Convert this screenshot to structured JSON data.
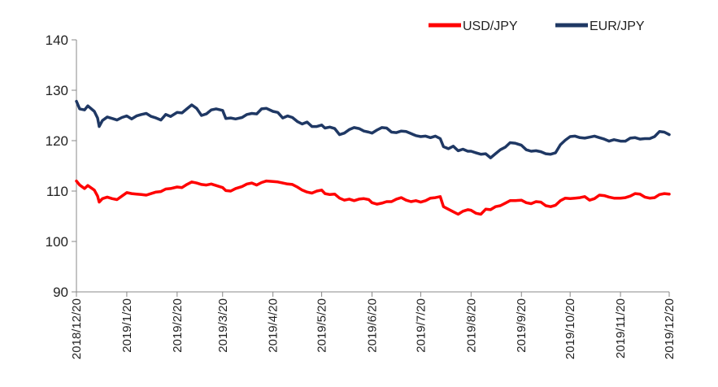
{
  "chart_data": {
    "type": "line",
    "title": "",
    "xlabel": "",
    "ylabel": "",
    "ylim": [
      90,
      140
    ],
    "yticks": [
      "140",
      "130",
      "120",
      "110",
      "100",
      "90"
    ],
    "xlim": [
      "2018/12/20",
      "2019/12/20"
    ],
    "xticks": [
      "2018/12/20",
      "2019/1/20",
      "2019/2/20",
      "2019/3/20",
      "2019/4/20",
      "2019/5/20",
      "2019/6/20",
      "2019/7/20",
      "2019/8/20",
      "2019/9/20",
      "2019/10/20",
      "2019/11/20",
      "2019/12/20"
    ],
    "grid": false,
    "legend_position": "top-right",
    "series": [
      {
        "name": "USD/JPY",
        "color": "#ff0000",
        "points": [
          [
            "2018/12/20",
            112.0
          ],
          [
            "2018/12/22",
            111.2
          ],
          [
            "2018/12/25",
            110.5
          ],
          [
            "2018/12/27",
            111.1
          ],
          [
            "2018/12/31",
            110.2
          ],
          [
            "2019/1/2",
            109.0
          ],
          [
            "2019/1/3",
            107.8
          ],
          [
            "2019/1/5",
            108.5
          ],
          [
            "2019/1/8",
            108.8
          ],
          [
            "2019/1/11",
            108.5
          ],
          [
            "2019/1/14",
            108.3
          ],
          [
            "2019/1/17",
            109.0
          ],
          [
            "2019/1/20",
            109.7
          ],
          [
            "2019/1/23",
            109.5
          ],
          [
            "2019/1/26",
            109.4
          ],
          [
            "2019/1/29",
            109.3
          ],
          [
            "2019/2/1",
            109.2
          ],
          [
            "2019/2/4",
            109.5
          ],
          [
            "2019/2/7",
            109.8
          ],
          [
            "2019/2/10",
            109.9
          ],
          [
            "2019/2/13",
            110.4
          ],
          [
            "2019/2/16",
            110.5
          ],
          [
            "2019/2/20",
            110.8
          ],
          [
            "2019/2/23",
            110.7
          ],
          [
            "2019/2/26",
            111.3
          ],
          [
            "2019/3/1",
            111.8
          ],
          [
            "2019/3/4",
            111.6
          ],
          [
            "2019/3/7",
            111.3
          ],
          [
            "2019/3/10",
            111.2
          ],
          [
            "2019/3/13",
            111.4
          ],
          [
            "2019/3/16",
            111.1
          ],
          [
            "2019/3/20",
            110.7
          ],
          [
            "2019/3/22",
            110.1
          ],
          [
            "2019/3/25",
            110.0
          ],
          [
            "2019/3/28",
            110.5
          ],
          [
            "2019/4/1",
            110.9
          ],
          [
            "2019/4/4",
            111.4
          ],
          [
            "2019/4/7",
            111.6
          ],
          [
            "2019/4/10",
            111.2
          ],
          [
            "2019/4/13",
            111.7
          ],
          [
            "2019/4/16",
            112.0
          ],
          [
            "2019/4/20",
            111.9
          ],
          [
            "2019/4/23",
            111.8
          ],
          [
            "2019/4/26",
            111.6
          ],
          [
            "2019/4/29",
            111.4
          ],
          [
            "2019/5/2",
            111.3
          ],
          [
            "2019/5/5",
            110.8
          ],
          [
            "2019/5/8",
            110.2
          ],
          [
            "2019/5/11",
            109.8
          ],
          [
            "2019/5/14",
            109.6
          ],
          [
            "2019/5/17",
            110.0
          ],
          [
            "2019/5/20",
            110.2
          ],
          [
            "2019/5/22",
            109.5
          ],
          [
            "2019/5/25",
            109.3
          ],
          [
            "2019/5/28",
            109.4
          ],
          [
            "2019/5/31",
            108.6
          ],
          [
            "2019/6/3",
            108.2
          ],
          [
            "2019/6/6",
            108.4
          ],
          [
            "2019/6/9",
            108.1
          ],
          [
            "2019/6/12",
            108.4
          ],
          [
            "2019/6/15",
            108.5
          ],
          [
            "2019/6/18",
            108.3
          ],
          [
            "2019/6/20",
            107.7
          ],
          [
            "2019/6/23",
            107.4
          ],
          [
            "2019/6/26",
            107.6
          ],
          [
            "2019/6/29",
            107.9
          ],
          [
            "2019/7/2",
            107.9
          ],
          [
            "2019/7/5",
            108.4
          ],
          [
            "2019/7/8",
            108.7
          ],
          [
            "2019/7/11",
            108.2
          ],
          [
            "2019/7/14",
            107.9
          ],
          [
            "2019/7/17",
            108.1
          ],
          [
            "2019/7/20",
            107.8
          ],
          [
            "2019/7/23",
            108.1
          ],
          [
            "2019/7/26",
            108.6
          ],
          [
            "2019/7/29",
            108.7
          ],
          [
            "2019/8/1",
            108.9
          ],
          [
            "2019/8/3",
            106.9
          ],
          [
            "2019/8/6",
            106.4
          ],
          [
            "2019/8/9",
            105.9
          ],
          [
            "2019/8/12",
            105.4
          ],
          [
            "2019/8/15",
            106.0
          ],
          [
            "2019/8/18",
            106.3
          ],
          [
            "2019/8/20",
            106.2
          ],
          [
            "2019/8/23",
            105.6
          ],
          [
            "2019/8/26",
            105.4
          ],
          [
            "2019/8/29",
            106.4
          ],
          [
            "2019/9/1",
            106.3
          ],
          [
            "2019/9/4",
            106.9
          ],
          [
            "2019/9/7",
            107.1
          ],
          [
            "2019/9/10",
            107.6
          ],
          [
            "2019/9/13",
            108.1
          ],
          [
            "2019/9/16",
            108.1
          ],
          [
            "2019/9/20",
            108.2
          ],
          [
            "2019/9/23",
            107.7
          ],
          [
            "2019/9/26",
            107.5
          ],
          [
            "2019/9/29",
            107.9
          ],
          [
            "2019/10/2",
            107.8
          ],
          [
            "2019/10/5",
            107.1
          ],
          [
            "2019/10/8",
            106.9
          ],
          [
            "2019/10/11",
            107.2
          ],
          [
            "2019/10/14",
            108.1
          ],
          [
            "2019/10/17",
            108.6
          ],
          [
            "2019/10/20",
            108.5
          ],
          [
            "2019/10/23",
            108.6
          ],
          [
            "2019/10/26",
            108.7
          ],
          [
            "2019/10/29",
            108.9
          ],
          [
            "2019/11/1",
            108.2
          ],
          [
            "2019/11/4",
            108.5
          ],
          [
            "2019/11/7",
            109.2
          ],
          [
            "2019/11/10",
            109.1
          ],
          [
            "2019/11/13",
            108.8
          ],
          [
            "2019/11/16",
            108.6
          ],
          [
            "2019/11/20",
            108.6
          ],
          [
            "2019/11/23",
            108.7
          ],
          [
            "2019/11/26",
            109.0
          ],
          [
            "2019/11/29",
            109.5
          ],
          [
            "2019/12/2",
            109.4
          ],
          [
            "2019/12/5",
            108.8
          ],
          [
            "2019/12/8",
            108.6
          ],
          [
            "2019/12/11",
            108.7
          ],
          [
            "2019/12/14",
            109.3
          ],
          [
            "2019/12/17",
            109.5
          ],
          [
            "2019/12/20",
            109.4
          ]
        ]
      },
      {
        "name": "EUR/JPY",
        "color": "#1f3864",
        "points": [
          [
            "2018/12/20",
            127.8
          ],
          [
            "2018/12/22",
            126.3
          ],
          [
            "2018/12/25",
            126.1
          ],
          [
            "2018/12/27",
            126.9
          ],
          [
            "2018/12/31",
            125.8
          ],
          [
            "2019/1/2",
            124.5
          ],
          [
            "2019/1/3",
            122.8
          ],
          [
            "2019/1/5",
            124.0
          ],
          [
            "2019/1/8",
            124.7
          ],
          [
            "2019/1/11",
            124.4
          ],
          [
            "2019/1/14",
            124.1
          ],
          [
            "2019/1/17",
            124.6
          ],
          [
            "2019/1/20",
            124.9
          ],
          [
            "2019/1/23",
            124.3
          ],
          [
            "2019/1/26",
            124.9
          ],
          [
            "2019/1/29",
            125.2
          ],
          [
            "2019/2/1",
            125.4
          ],
          [
            "2019/2/4",
            124.8
          ],
          [
            "2019/2/7",
            124.5
          ],
          [
            "2019/2/10",
            124.1
          ],
          [
            "2019/2/13",
            125.2
          ],
          [
            "2019/2/16",
            124.8
          ],
          [
            "2019/2/20",
            125.6
          ],
          [
            "2019/2/23",
            125.5
          ],
          [
            "2019/2/26",
            126.3
          ],
          [
            "2019/3/1",
            127.1
          ],
          [
            "2019/3/4",
            126.4
          ],
          [
            "2019/3/7",
            125.0
          ],
          [
            "2019/3/10",
            125.3
          ],
          [
            "2019/3/13",
            126.1
          ],
          [
            "2019/3/16",
            126.3
          ],
          [
            "2019/3/20",
            126.0
          ],
          [
            "2019/3/22",
            124.4
          ],
          [
            "2019/3/25",
            124.5
          ],
          [
            "2019/3/28",
            124.3
          ],
          [
            "2019/4/1",
            124.6
          ],
          [
            "2019/4/4",
            125.2
          ],
          [
            "2019/4/7",
            125.4
          ],
          [
            "2019/4/10",
            125.3
          ],
          [
            "2019/4/13",
            126.3
          ],
          [
            "2019/4/16",
            126.4
          ],
          [
            "2019/4/20",
            125.8
          ],
          [
            "2019/4/23",
            125.6
          ],
          [
            "2019/4/26",
            124.5
          ],
          [
            "2019/4/29",
            124.9
          ],
          [
            "2019/5/2",
            124.6
          ],
          [
            "2019/5/5",
            123.8
          ],
          [
            "2019/5/8",
            123.3
          ],
          [
            "2019/5/11",
            123.7
          ],
          [
            "2019/5/14",
            122.8
          ],
          [
            "2019/5/17",
            122.8
          ],
          [
            "2019/5/20",
            123.1
          ],
          [
            "2019/5/22",
            122.5
          ],
          [
            "2019/5/25",
            122.7
          ],
          [
            "2019/5/28",
            122.4
          ],
          [
            "2019/5/31",
            121.2
          ],
          [
            "2019/6/3",
            121.5
          ],
          [
            "2019/6/6",
            122.2
          ],
          [
            "2019/6/9",
            122.6
          ],
          [
            "2019/6/12",
            122.4
          ],
          [
            "2019/6/15",
            121.9
          ],
          [
            "2019/6/18",
            121.7
          ],
          [
            "2019/6/20",
            121.5
          ],
          [
            "2019/6/23",
            122.1
          ],
          [
            "2019/6/26",
            122.6
          ],
          [
            "2019/6/29",
            122.5
          ],
          [
            "2019/7/2",
            121.7
          ],
          [
            "2019/7/5",
            121.6
          ],
          [
            "2019/7/8",
            121.9
          ],
          [
            "2019/7/11",
            121.8
          ],
          [
            "2019/7/14",
            121.4
          ],
          [
            "2019/7/17",
            121.0
          ],
          [
            "2019/7/20",
            120.8
          ],
          [
            "2019/7/23",
            120.9
          ],
          [
            "2019/7/26",
            120.6
          ],
          [
            "2019/7/29",
            120.9
          ],
          [
            "2019/8/1",
            120.4
          ],
          [
            "2019/8/3",
            118.8
          ],
          [
            "2019/8/6",
            118.4
          ],
          [
            "2019/8/9",
            118.9
          ],
          [
            "2019/8/12",
            118.0
          ],
          [
            "2019/8/15",
            118.3
          ],
          [
            "2019/8/18",
            117.9
          ],
          [
            "2019/8/20",
            117.9
          ],
          [
            "2019/8/23",
            117.6
          ],
          [
            "2019/8/26",
            117.3
          ],
          [
            "2019/8/29",
            117.4
          ],
          [
            "2019/9/1",
            116.6
          ],
          [
            "2019/9/4",
            117.4
          ],
          [
            "2019/9/7",
            118.2
          ],
          [
            "2019/9/10",
            118.7
          ],
          [
            "2019/9/13",
            119.6
          ],
          [
            "2019/9/16",
            119.5
          ],
          [
            "2019/9/20",
            119.1
          ],
          [
            "2019/9/23",
            118.2
          ],
          [
            "2019/9/26",
            117.9
          ],
          [
            "2019/9/29",
            118.0
          ],
          [
            "2019/10/2",
            117.8
          ],
          [
            "2019/10/5",
            117.4
          ],
          [
            "2019/10/8",
            117.3
          ],
          [
            "2019/10/11",
            117.6
          ],
          [
            "2019/10/14",
            119.2
          ],
          [
            "2019/10/17",
            120.1
          ],
          [
            "2019/10/20",
            120.8
          ],
          [
            "2019/10/23",
            120.9
          ],
          [
            "2019/10/26",
            120.6
          ],
          [
            "2019/10/29",
            120.5
          ],
          [
            "2019/11/1",
            120.7
          ],
          [
            "2019/11/4",
            120.9
          ],
          [
            "2019/11/7",
            120.6
          ],
          [
            "2019/11/10",
            120.3
          ],
          [
            "2019/11/13",
            119.9
          ],
          [
            "2019/11/16",
            120.2
          ],
          [
            "2019/11/20",
            119.9
          ],
          [
            "2019/11/23",
            119.9
          ],
          [
            "2019/11/26",
            120.5
          ],
          [
            "2019/11/29",
            120.6
          ],
          [
            "2019/12/2",
            120.3
          ],
          [
            "2019/12/5",
            120.4
          ],
          [
            "2019/12/8",
            120.4
          ],
          [
            "2019/12/11",
            120.8
          ],
          [
            "2019/12/14",
            121.8
          ],
          [
            "2019/12/17",
            121.7
          ],
          [
            "2019/12/20",
            121.2
          ]
        ]
      }
    ]
  }
}
